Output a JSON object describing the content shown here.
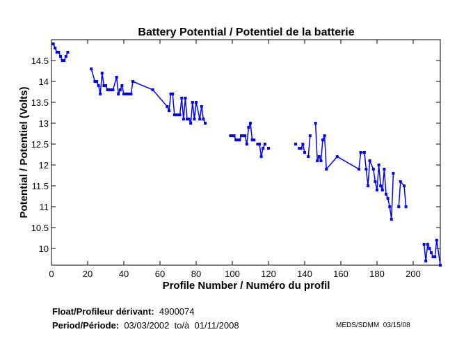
{
  "chart_data": {
    "type": "line",
    "title": "Battery Potential / Potentiel de la batterie",
    "xlabel": "Profile Number / Numéro du profil",
    "ylabel": "Potential / Potentiel (Volts)",
    "xlim": [
      0,
      215
    ],
    "ylim": [
      9.6,
      15.0
    ],
    "xticks": [
      0,
      20,
      40,
      60,
      80,
      100,
      120,
      140,
      160,
      180,
      200
    ],
    "yticks": [
      10,
      10.5,
      11,
      11.5,
      12,
      12.5,
      13,
      13.5,
      14,
      14.5
    ],
    "color": "#0000ff",
    "segments": [
      [
        [
          1,
          14.9
        ],
        [
          2,
          14.8
        ],
        [
          3,
          14.7
        ],
        [
          4,
          14.7
        ],
        [
          5,
          14.6
        ],
        [
          6,
          14.5
        ],
        [
          7,
          14.5
        ],
        [
          8,
          14.6
        ],
        [
          9,
          14.7
        ]
      ],
      [
        [
          22,
          14.3
        ],
        [
          24,
          14.0
        ],
        [
          25,
          14.0
        ],
        [
          26,
          13.9
        ],
        [
          27,
          13.7
        ],
        [
          28,
          14.2
        ],
        [
          29,
          13.9
        ],
        [
          30,
          13.9
        ],
        [
          31,
          13.8
        ],
        [
          32,
          13.8
        ],
        [
          33,
          13.8
        ],
        [
          34,
          13.8
        ],
        [
          36,
          14.1
        ],
        [
          37,
          13.7
        ],
        [
          38,
          13.8
        ],
        [
          39,
          13.9
        ],
        [
          40,
          13.7
        ],
        [
          41,
          13.7
        ],
        [
          42,
          13.7
        ],
        [
          43,
          13.7
        ],
        [
          44,
          13.7
        ],
        [
          45,
          14.0
        ],
        [
          56,
          13.8
        ],
        [
          64,
          13.4
        ],
        [
          65,
          13.3
        ],
        [
          66,
          13.7
        ],
        [
          67,
          13.7
        ],
        [
          68,
          13.2
        ],
        [
          69,
          13.2
        ],
        [
          70,
          13.2
        ],
        [
          71,
          13.2
        ],
        [
          72,
          13.6
        ],
        [
          73,
          13.1
        ],
        [
          74,
          13.6
        ],
        [
          75,
          13.1
        ],
        [
          76,
          13.1
        ],
        [
          77,
          13.0
        ],
        [
          78,
          13.5
        ],
        [
          79,
          13.1
        ],
        [
          80,
          13.5
        ],
        [
          82,
          13.1
        ],
        [
          83,
          13.4
        ],
        [
          84,
          13.1
        ],
        [
          85,
          13.0
        ]
      ],
      [
        [
          99,
          12.7
        ],
        [
          100,
          12.7
        ],
        [
          101,
          12.7
        ],
        [
          102,
          12.6
        ],
        [
          103,
          12.6
        ],
        [
          104,
          12.6
        ],
        [
          105,
          12.7
        ],
        [
          106,
          12.7
        ],
        [
          107,
          12.7
        ],
        [
          108,
          12.5
        ],
        [
          109,
          12.9
        ],
        [
          110,
          13.0
        ],
        [
          111,
          12.6
        ],
        [
          112,
          12.6
        ]
      ],
      [
        [
          114,
          12.5
        ],
        [
          115,
          12.5
        ],
        [
          116,
          12.2
        ],
        [
          117,
          12.4
        ],
        [
          118,
          12.5
        ]
      ],
      [
        [
          120,
          12.4
        ]
      ],
      [
        [
          135,
          12.5
        ]
      ],
      [
        [
          137,
          12.4
        ],
        [
          138,
          12.4
        ],
        [
          139,
          12.5
        ],
        [
          140,
          12.3
        ]
      ],
      [
        [
          142,
          12.2
        ],
        [
          143,
          12.7
        ]
      ],
      [
        [
          146,
          13.0
        ],
        [
          147,
          12.1
        ],
        [
          148,
          12.2
        ],
        [
          149,
          12.1
        ],
        [
          150,
          12.6
        ],
        [
          151,
          12.7
        ],
        [
          152,
          11.9
        ],
        [
          158,
          12.2
        ],
        [
          170,
          11.9
        ],
        [
          171,
          12.3
        ],
        [
          173,
          12.3
        ],
        [
          174,
          11.9
        ],
        [
          175,
          11.5
        ],
        [
          176,
          12.1
        ],
        [
          178,
          11.9
        ],
        [
          179,
          11.6
        ],
        [
          180,
          11.4
        ],
        [
          181,
          12.0
        ],
        [
          182,
          11.5
        ],
        [
          183,
          11.4
        ],
        [
          184,
          11.9
        ],
        [
          185,
          11.3
        ],
        [
          186,
          11.2
        ],
        [
          187,
          11.0
        ],
        [
          188,
          10.7
        ],
        [
          189,
          11.8
        ]
      ],
      [
        [
          192,
          11.0
        ],
        [
          193,
          11.6
        ],
        [
          195,
          11.5
        ],
        [
          196,
          11.0
        ]
      ],
      [
        [
          206,
          10.1
        ],
        [
          207,
          9.7
        ],
        [
          208,
          10.1
        ],
        [
          209,
          10.0
        ],
        [
          210,
          9.9
        ],
        [
          211,
          9.8
        ],
        [
          212,
          9.8
        ],
        [
          213,
          10.2
        ],
        [
          215,
          9.6
        ]
      ]
    ]
  },
  "info": {
    "float_label": "Float/Profileur dérivant:",
    "float_value": "4900074",
    "period_label": "Period/Période:",
    "period_value": "03/03/2002  to/à  01/11/2008",
    "credit": "MEDS/SDMM  03/15/08"
  }
}
